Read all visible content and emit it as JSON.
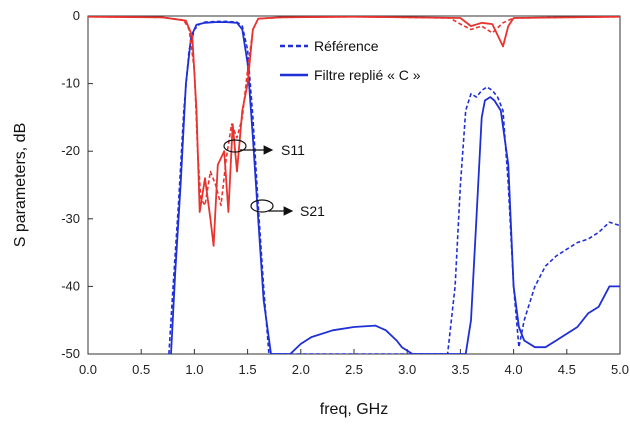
{
  "chart_data": {
    "type": "line",
    "title": "",
    "xlabel": "freq, GHz",
    "ylabel": "S parameters, dB",
    "xlim": [
      0,
      5
    ],
    "ylim": [
      -50,
      0
    ],
    "x_ticks": [
      "0.0",
      "0.5",
      "1.0",
      "1.5",
      "2.0",
      "2.5",
      "3.0",
      "3.5",
      "4.0",
      "4.5",
      "5.0"
    ],
    "y_ticks": [
      "0",
      "-10",
      "-20",
      "-30",
      "-40",
      "-50"
    ],
    "grid": false,
    "legend": {
      "placement": "top-center",
      "entries": [
        {
          "label": "Référence",
          "style": "dashed"
        },
        {
          "label": "Filtre replié « C »",
          "style": "solid"
        }
      ]
    },
    "annotations": [
      {
        "text": "S11",
        "x": 1.4,
        "y": -19
      },
      {
        "text": "S21",
        "x": 1.63,
        "y": -28
      }
    ],
    "colors": {
      "s21": "#1f2fd6",
      "s11": "#e8332e"
    },
    "series": [
      {
        "name": "S21 Référence",
        "color": "#1f2fd6",
        "dash": true,
        "points": [
          [
            0.76,
            -50
          ],
          [
            0.8,
            -40
          ],
          [
            0.85,
            -28
          ],
          [
            0.9,
            -14
          ],
          [
            0.95,
            -5
          ],
          [
            1.0,
            -2
          ],
          [
            1.05,
            -1.2
          ],
          [
            1.1,
            -0.9
          ],
          [
            1.2,
            -0.8
          ],
          [
            1.3,
            -0.8
          ],
          [
            1.4,
            -0.9
          ],
          [
            1.45,
            -1.5
          ],
          [
            1.5,
            -5
          ],
          [
            1.55,
            -15
          ],
          [
            1.6,
            -28
          ],
          [
            1.65,
            -40
          ],
          [
            1.7,
            -50
          ],
          [
            3.38,
            -50
          ],
          [
            3.45,
            -40
          ],
          [
            3.5,
            -25
          ],
          [
            3.55,
            -14
          ],
          [
            3.6,
            -11.5
          ],
          [
            3.65,
            -12
          ],
          [
            3.7,
            -11
          ],
          [
            3.75,
            -10.5
          ],
          [
            3.8,
            -11
          ],
          [
            3.85,
            -12
          ],
          [
            3.9,
            -14
          ],
          [
            3.95,
            -25
          ],
          [
            4.0,
            -40
          ],
          [
            4.05,
            -49
          ],
          [
            4.1,
            -45
          ],
          [
            4.2,
            -40
          ],
          [
            4.3,
            -37
          ],
          [
            4.4,
            -35.5
          ],
          [
            4.5,
            -34.5
          ],
          [
            4.6,
            -33.5
          ],
          [
            4.7,
            -33
          ],
          [
            4.8,
            -32
          ],
          [
            4.9,
            -30.5
          ],
          [
            5.0,
            -31
          ]
        ]
      },
      {
        "name": "S21 Filtre replié « C »",
        "color": "#1f2fd6",
        "dash": false,
        "points": [
          [
            0.78,
            -50
          ],
          [
            0.82,
            -38
          ],
          [
            0.87,
            -25
          ],
          [
            0.92,
            -10
          ],
          [
            0.97,
            -3
          ],
          [
            1.02,
            -1.3
          ],
          [
            1.1,
            -1
          ],
          [
            1.2,
            -0.9
          ],
          [
            1.3,
            -0.9
          ],
          [
            1.4,
            -1
          ],
          [
            1.45,
            -2
          ],
          [
            1.5,
            -7
          ],
          [
            1.55,
            -18
          ],
          [
            1.6,
            -30
          ],
          [
            1.65,
            -42
          ],
          [
            1.72,
            -50
          ],
          [
            1.9,
            -50
          ],
          [
            2.0,
            -48.5
          ],
          [
            2.1,
            -47.5
          ],
          [
            2.3,
            -46.5
          ],
          [
            2.5,
            -46
          ],
          [
            2.7,
            -45.8
          ],
          [
            2.8,
            -46.5
          ],
          [
            2.9,
            -48
          ],
          [
            2.95,
            -49
          ],
          [
            3.05,
            -50
          ],
          [
            3.55,
            -50
          ],
          [
            3.6,
            -45
          ],
          [
            3.65,
            -30
          ],
          [
            3.7,
            -15
          ],
          [
            3.73,
            -12.5
          ],
          [
            3.78,
            -12
          ],
          [
            3.82,
            -12.5
          ],
          [
            3.88,
            -14
          ],
          [
            3.95,
            -22
          ],
          [
            4.0,
            -40
          ],
          [
            4.05,
            -46
          ],
          [
            4.1,
            -48
          ],
          [
            4.2,
            -49
          ],
          [
            4.3,
            -49
          ],
          [
            4.4,
            -48
          ],
          [
            4.5,
            -47
          ],
          [
            4.6,
            -46
          ],
          [
            4.7,
            -44
          ],
          [
            4.8,
            -43
          ],
          [
            4.9,
            -40
          ],
          [
            5.0,
            -40
          ]
        ]
      },
      {
        "name": "S11 Référence",
        "color": "#e8332e",
        "dash": true,
        "points": [
          [
            0.0,
            -0.1
          ],
          [
            0.7,
            -0.2
          ],
          [
            0.9,
            -0.6
          ],
          [
            0.95,
            -2
          ],
          [
            1.0,
            -8
          ],
          [
            1.03,
            -20
          ],
          [
            1.06,
            -27
          ],
          [
            1.1,
            -28
          ],
          [
            1.15,
            -23
          ],
          [
            1.2,
            -25
          ],
          [
            1.25,
            -28
          ],
          [
            1.3,
            -21
          ],
          [
            1.35,
            -16
          ],
          [
            1.4,
            -18
          ],
          [
            1.45,
            -15
          ],
          [
            1.5,
            -8
          ],
          [
            1.55,
            -2
          ],
          [
            1.6,
            -0.4
          ],
          [
            1.8,
            -0.2
          ],
          [
            2.5,
            -0.1
          ],
          [
            3.4,
            -0.3
          ],
          [
            3.5,
            -1.2
          ],
          [
            3.6,
            -2
          ],
          [
            3.7,
            -1.5
          ],
          [
            3.8,
            -2.5
          ],
          [
            3.9,
            -1
          ],
          [
            4.0,
            -0.3
          ],
          [
            5.0,
            -0.1
          ]
        ]
      },
      {
        "name": "S11 Filtre replié « C »",
        "color": "#e8332e",
        "dash": false,
        "points": [
          [
            0.0,
            -0.1
          ],
          [
            0.7,
            -0.2
          ],
          [
            0.92,
            -0.7
          ],
          [
            0.98,
            -3
          ],
          [
            1.02,
            -14
          ],
          [
            1.05,
            -29
          ],
          [
            1.1,
            -24
          ],
          [
            1.15,
            -30
          ],
          [
            1.18,
            -34
          ],
          [
            1.22,
            -22
          ],
          [
            1.28,
            -20
          ],
          [
            1.32,
            -29
          ],
          [
            1.36,
            -16
          ],
          [
            1.4,
            -23
          ],
          [
            1.45,
            -14
          ],
          [
            1.5,
            -10
          ],
          [
            1.55,
            -2
          ],
          [
            1.6,
            -0.4
          ],
          [
            1.8,
            -0.2
          ],
          [
            2.5,
            -0.1
          ],
          [
            3.5,
            -0.3
          ],
          [
            3.6,
            -1.5
          ],
          [
            3.7,
            -1
          ],
          [
            3.8,
            -1.2
          ],
          [
            3.9,
            -4.5
          ],
          [
            3.95,
            -1.5
          ],
          [
            4.0,
            -0.3
          ],
          [
            5.0,
            -0.1
          ]
        ]
      }
    ]
  }
}
